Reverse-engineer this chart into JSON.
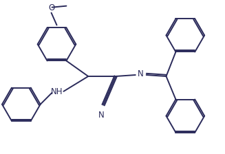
{
  "bg_color": "#ffffff",
  "line_color": "#2a2a5a",
  "line_width": 1.4,
  "dbo": 0.008,
  "figsize": [
    3.27,
    2.24
  ],
  "dpi": 100,
  "xlim": [
    0,
    3.27
  ],
  "ylim": [
    0,
    2.24
  ]
}
